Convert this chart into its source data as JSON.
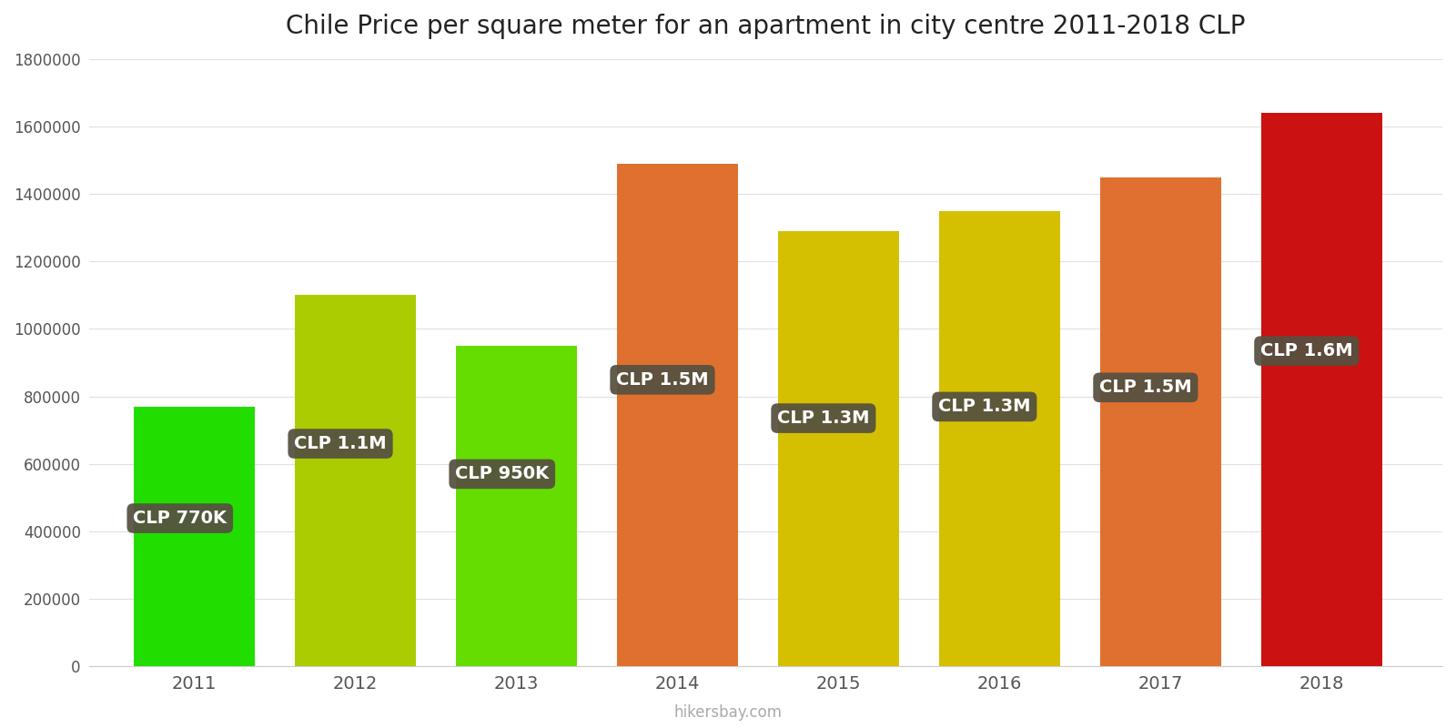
{
  "title": "Chile Price per square meter for an apartment in city centre 2011-2018 CLP",
  "years": [
    2011,
    2012,
    2013,
    2014,
    2015,
    2016,
    2017,
    2018
  ],
  "values": [
    770000,
    1100000,
    950000,
    1490000,
    1290000,
    1350000,
    1450000,
    1640000
  ],
  "bar_colors": [
    "#22dd00",
    "#aacc00",
    "#66dd00",
    "#e07030",
    "#d4c000",
    "#d4c000",
    "#e07030",
    "#cc1111"
  ],
  "labels": [
    "CLP 770K",
    "CLP 1.1M",
    "CLP 950K",
    "CLP 1.5M",
    "CLP 1.3M",
    "CLP 1.3M",
    "CLP 1.5M",
    "CLP 1.6M"
  ],
  "label_box_color": "#555040",
  "label_text_color": "#ffffff",
  "ylim": [
    0,
    1800000
  ],
  "yticks": [
    0,
    200000,
    400000,
    600000,
    800000,
    1000000,
    1200000,
    1400000,
    1600000,
    1800000
  ],
  "background_color": "#ffffff",
  "watermark": "hikersbay.com",
  "title_fontsize": 20,
  "bar_width": 0.75,
  "label_y_fractions": [
    0.57,
    0.6,
    0.6,
    0.57,
    0.57,
    0.57,
    0.57,
    0.57
  ],
  "label_x_offsets": [
    -0.38,
    -0.38,
    -0.38,
    -0.38,
    -0.38,
    -0.38,
    -0.38,
    -0.38
  ]
}
